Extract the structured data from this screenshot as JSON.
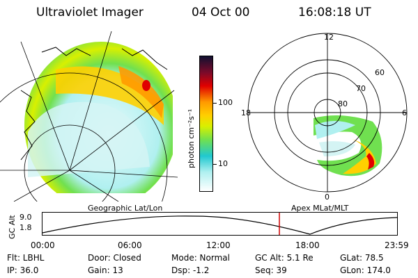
{
  "header": {
    "title": "Ultraviolet Imager",
    "date": "04 Oct 00",
    "time": "16:08:18 UT"
  },
  "colorbar": {
    "label": "photon cm⁻²s⁻¹",
    "ticks": [
      "100",
      "10"
    ]
  },
  "polar_plot": {
    "mlt_labels": [
      "12",
      "18",
      "6",
      "0"
    ],
    "lat_labels": [
      "60",
      "70",
      "80"
    ]
  },
  "panel_labels": {
    "left": "Geographic Lat/Lon",
    "right": "Apex MLat/MLT"
  },
  "timeline": {
    "ylabel": "GC Alt",
    "yticks": [
      "9.0",
      "1.8"
    ],
    "xticks": [
      "00:00",
      "06:00",
      "12:00",
      "18:00",
      "23:59"
    ],
    "current_time_marker": "16:08"
  },
  "info": {
    "row1": {
      "flt": "Flt: LBHL",
      "door": "Door: Closed",
      "mode": "Mode: Normal",
      "gcalt": "GC Alt: 5.1 Re",
      "glat": "GLat:  78.5"
    },
    "row2": {
      "ip": "IP: 36.0",
      "gain": "Gain: 13",
      "dsp": "Dsp:    -1.2",
      "seq": "Seq: 39",
      "glon": "GLon: 174.0"
    }
  },
  "colors": {
    "marker": "#d00000",
    "aurora_low": "#b0f0f0",
    "aurora_mid": "#70e050",
    "aurora_high": "#ff9a00",
    "aurora_peak": "#e00000"
  }
}
